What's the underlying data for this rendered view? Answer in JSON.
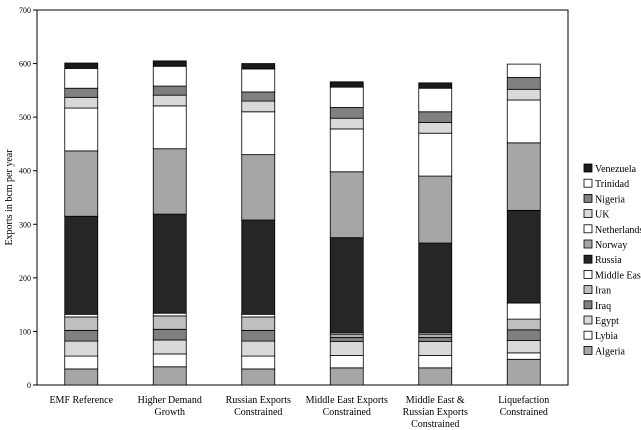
{
  "chart_data": {
    "type": "bar",
    "stacked": true,
    "title": "",
    "xlabel": "",
    "ylabel": "Exports in bcm per year",
    "ylim": [
      0,
      700
    ],
    "yticks": [
      0,
      100,
      200,
      300,
      400,
      500,
      600,
      700
    ],
    "grid": false,
    "legend": "right",
    "categories": [
      [
        "EMF Reference"
      ],
      [
        "Higher Demand",
        "Growth"
      ],
      [
        "Russian Exports",
        "Constrained"
      ],
      [
        "Middle East Exports",
        "Constrained"
      ],
      [
        "Middle East &",
        "Russian Exports",
        "Constrained"
      ],
      [
        "Liquefaction",
        "Constrained"
      ]
    ],
    "series": [
      {
        "name": "Algeria",
        "color": "#a6a6a6",
        "values": [
          30,
          34,
          30,
          32,
          32,
          48
        ]
      },
      {
        "name": "Lybia",
        "color": "#ffffff",
        "values": [
          24,
          24,
          24,
          23,
          23,
          12
        ]
      },
      {
        "name": "Egypt",
        "color": "#d9d9d9",
        "values": [
          28,
          26,
          28,
          26,
          26,
          23
        ]
      },
      {
        "name": "Iraq",
        "color": "#808080",
        "values": [
          20,
          20,
          20,
          8,
          8,
          20
        ]
      },
      {
        "name": "Iran",
        "color": "#bfbfbf",
        "values": [
          25,
          25,
          25,
          5,
          5,
          20
        ]
      },
      {
        "name": "Middle East",
        "color": "#ffffff",
        "values": [
          5,
          5,
          5,
          3,
          3,
          30
        ]
      },
      {
        "name": "Russia",
        "color": "#262626",
        "values": [
          183,
          185,
          176,
          178,
          168,
          173
        ]
      },
      {
        "name": "Norway",
        "color": "#a6a6a6",
        "values": [
          122,
          122,
          122,
          123,
          125,
          126
        ]
      },
      {
        "name": "Netherlands",
        "color": "#ffffff",
        "values": [
          80,
          80,
          80,
          80,
          80,
          80
        ]
      },
      {
        "name": "UK",
        "color": "#d9d9d9",
        "values": [
          20,
          20,
          20,
          20,
          20,
          20
        ]
      },
      {
        "name": "Nigeria",
        "color": "#808080",
        "values": [
          17,
          17,
          17,
          20,
          20,
          22
        ]
      },
      {
        "name": "Trinidad",
        "color": "#ffffff",
        "values": [
          37,
          37,
          43,
          38,
          44,
          25
        ]
      },
      {
        "name": "Venezuela",
        "color": "#1a1a1a",
        "values": [
          10,
          10,
          10,
          10,
          10,
          0
        ]
      }
    ]
  }
}
